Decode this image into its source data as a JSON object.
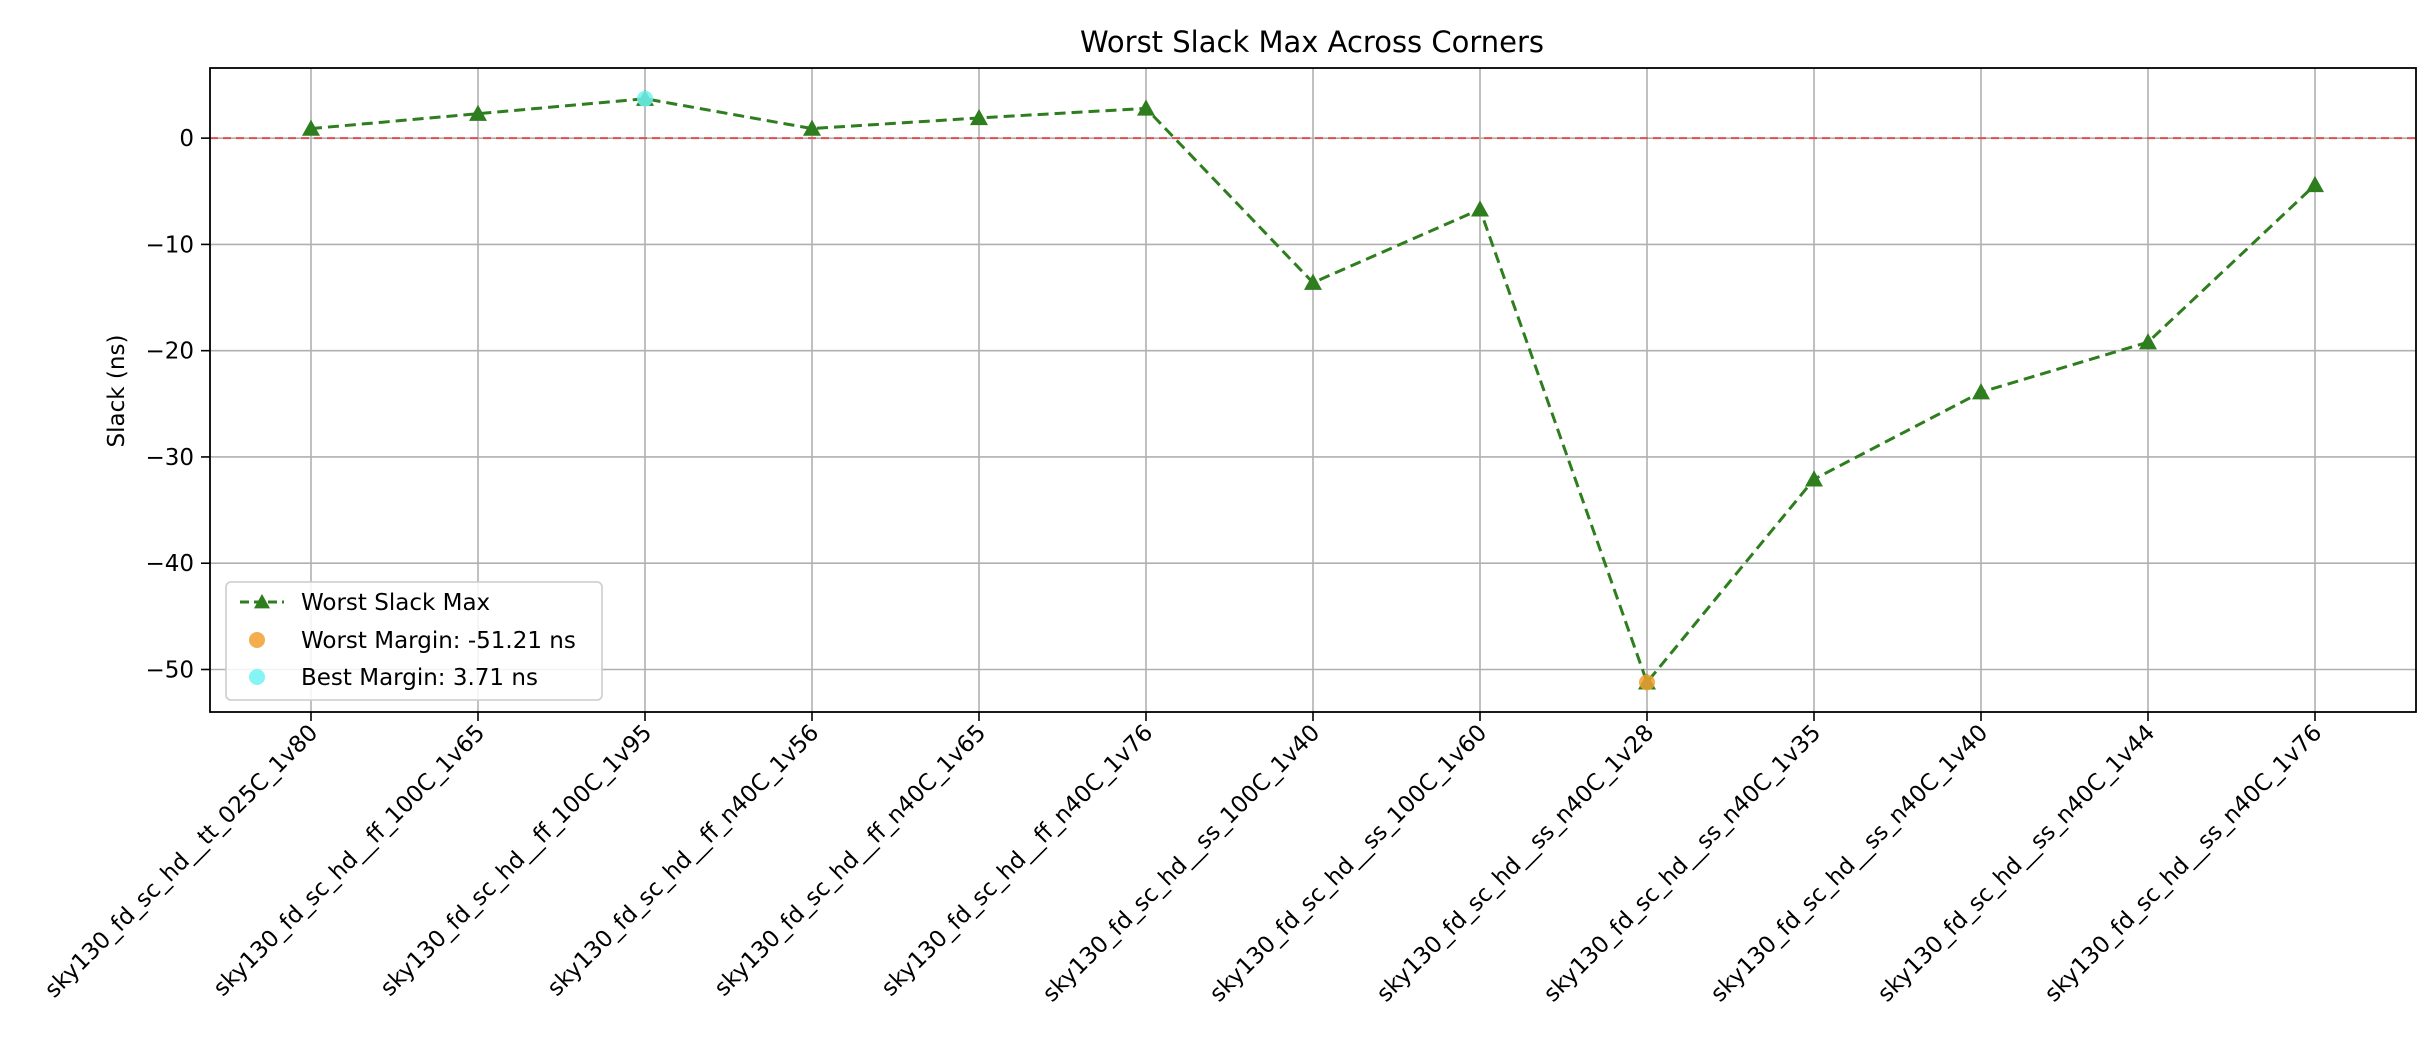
{
  "chart_data": {
    "type": "line",
    "title": "Worst Slack Max Across Corners",
    "xlabel": "",
    "ylabel": "Slack (ns)",
    "ylim": [
      -54,
      6.6
    ],
    "yticks": [
      0,
      -10,
      -20,
      -30,
      -40,
      -50
    ],
    "grid": true,
    "legend_position": "lower-left",
    "categories": [
      "sky130_fd_sc_hd__tt_025C_1v80",
      "sky130_fd_sc_hd__ff_100C_1v65",
      "sky130_fd_sc_hd__ff_100C_1v95",
      "sky130_fd_sc_hd__ff_n40C_1v56",
      "sky130_fd_sc_hd__ff_n40C_1v65",
      "sky130_fd_sc_hd__ff_n40C_1v76",
      "sky130_fd_sc_hd__ss_100C_1v40",
      "sky130_fd_sc_hd__ss_100C_1v60",
      "sky130_fd_sc_hd__ss_n40C_1v28",
      "sky130_fd_sc_hd__ss_n40C_1v35",
      "sky130_fd_sc_hd__ss_n40C_1v40",
      "sky130_fd_sc_hd__ss_n40C_1v44",
      "sky130_fd_sc_hd__ss_n40C_1v76"
    ],
    "series": [
      {
        "name": "Worst Slack Max",
        "values": [
          0.9,
          2.3,
          3.71,
          0.9,
          1.9,
          2.8,
          -13.6,
          -6.7,
          -51.21,
          -32.1,
          -23.9,
          -19.2,
          -4.4
        ],
        "color": "#2e7d1e",
        "line_style": "dashed",
        "marker": "triangle"
      }
    ],
    "highlights": [
      {
        "label": "Worst Margin: -51.21 ns",
        "category_index": 8,
        "value": -51.21,
        "color": "#f0a030"
      },
      {
        "label": "Best Margin: 3.71 ns",
        "category_index": 2,
        "value": 3.71,
        "color": "#6ff2f2"
      }
    ],
    "reference_line": {
      "value": 0,
      "color": "#e05050",
      "line_style": "dashed"
    }
  }
}
